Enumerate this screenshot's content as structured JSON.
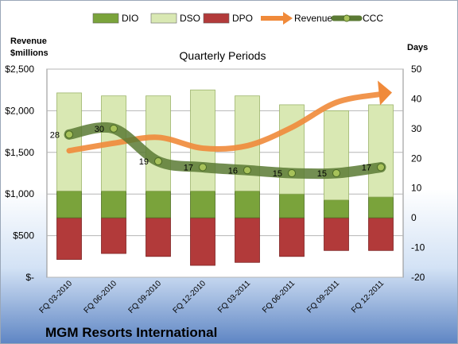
{
  "chart_data": {
    "type": "bar",
    "title": "Quarterly Periods",
    "footer_title": "MGM Resorts International",
    "ylabel_left": [
      "Revenue",
      "$millions"
    ],
    "ylabel_right": "Days",
    "categories": [
      "FQ 03-2010",
      "FQ 06-2010",
      "FQ 09-2010",
      "FQ 12-2010",
      "FQ 03-2011",
      "FQ 06-2011",
      "FQ 09-2011",
      "FQ 12-2011"
    ],
    "left_axis": {
      "min": 0,
      "max": 2500,
      "ticks": [
        "$-",
        "$500",
        "$1,000",
        "$1,500",
        "$2,000",
        "$2,500"
      ]
    },
    "right_axis": {
      "min": -20,
      "max": 50,
      "ticks": [
        "-20",
        "-10",
        "0",
        "10",
        "20",
        "30",
        "40",
        "50"
      ]
    },
    "series": [
      {
        "name": "DIO",
        "axis": "right",
        "kind": "stacked-bar",
        "color": "#7aa33b",
        "values": [
          9,
          9,
          9,
          9,
          9,
          8,
          6,
          7
        ]
      },
      {
        "name": "DSO",
        "axis": "right",
        "kind": "stacked-bar",
        "color": "#d9e8b3",
        "values": [
          33,
          32,
          32,
          34,
          32,
          30,
          30,
          31
        ]
      },
      {
        "name": "DPO",
        "axis": "right",
        "kind": "negative-bar",
        "color": "#b23a3a",
        "values": [
          -14,
          -12,
          -13,
          -16,
          -15,
          -13,
          -11,
          -11
        ]
      },
      {
        "name": "Revenue",
        "axis": "left",
        "kind": "arrow-line",
        "color": "#f08a3a",
        "values": [
          1520,
          1610,
          1680,
          1550,
          1580,
          1800,
          2100,
          2200
        ]
      },
      {
        "name": "CCC",
        "axis": "right",
        "kind": "line-markers",
        "color": "#5b7a34",
        "values": [
          28,
          30,
          19,
          17,
          16,
          15,
          15,
          17
        ]
      }
    ],
    "grid": true,
    "legend": "top"
  }
}
